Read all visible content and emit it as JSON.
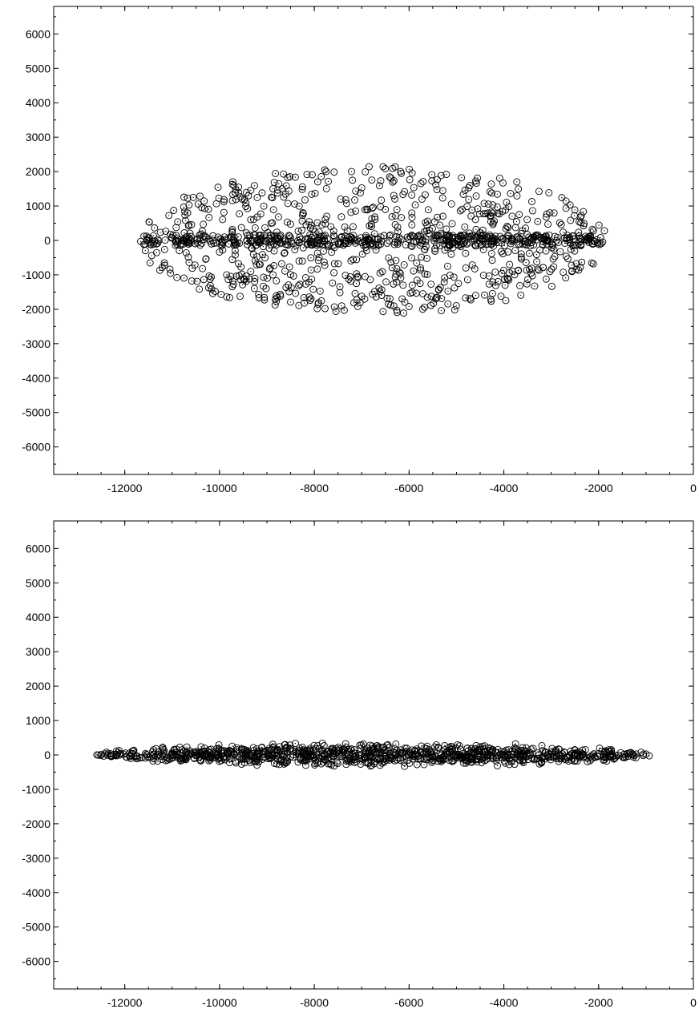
{
  "chart_data": [
    {
      "type": "scatter",
      "title": "",
      "xlabel": "",
      "ylabel": "",
      "xlim": [
        -13500,
        0
      ],
      "ylim": [
        -6800,
        6800
      ],
      "grid": false,
      "legend": "none",
      "marker": "open-circle-with-dot",
      "x_ticks": [
        {
          "value": -12000,
          "label": "-12000"
        },
        {
          "value": -10000,
          "label": "-10000"
        },
        {
          "value": -8000,
          "label": "-8000"
        },
        {
          "value": -6000,
          "label": "-6000"
        },
        {
          "value": -4000,
          "label": "-4000"
        },
        {
          "value": -2000,
          "label": "-2000"
        },
        {
          "value": 0,
          "label": "0"
        }
      ],
      "y_ticks": [
        {
          "value": 6000,
          "label": "6000"
        },
        {
          "value": 5000,
          "label": "5000"
        },
        {
          "value": 4000,
          "label": "4000"
        },
        {
          "value": 3000,
          "label": "3000"
        },
        {
          "value": 2000,
          "label": "2000"
        },
        {
          "value": 1000,
          "label": "1000"
        },
        {
          "value": 0,
          "label": "0"
        },
        {
          "value": -1000,
          "label": "-1000"
        },
        {
          "value": -2000,
          "label": "-2000"
        },
        {
          "value": -3000,
          "label": "-3000"
        },
        {
          "value": -4000,
          "label": "-4000"
        },
        {
          "value": -5000,
          "label": "-5000"
        },
        {
          "value": -6000,
          "label": "-6000"
        }
      ],
      "distribution": {
        "shape": "filled-ellipse",
        "center": [
          -6750,
          0
        ],
        "semi_axis_x": 4950,
        "semi_axis_y": 2150,
        "count": 1200
      }
    },
    {
      "type": "scatter",
      "title": "",
      "xlabel": "",
      "ylabel": "",
      "xlim": [
        -13500,
        0
      ],
      "ylim": [
        -6800,
        6800
      ],
      "grid": false,
      "legend": "none",
      "marker": "open-circle-with-dot",
      "x_ticks": [
        {
          "value": -12000,
          "label": "-12000"
        },
        {
          "value": -10000,
          "label": "-10000"
        },
        {
          "value": -8000,
          "label": "-8000"
        },
        {
          "value": -6000,
          "label": "-6000"
        },
        {
          "value": -4000,
          "label": "-4000"
        },
        {
          "value": -2000,
          "label": "-2000"
        },
        {
          "value": 0,
          "label": "0"
        }
      ],
      "y_ticks": [
        {
          "value": 6000,
          "label": "6000"
        },
        {
          "value": 5000,
          "label": "5000"
        },
        {
          "value": 4000,
          "label": "4000"
        },
        {
          "value": 3000,
          "label": "3000"
        },
        {
          "value": 2000,
          "label": "2000"
        },
        {
          "value": 1000,
          "label": "1000"
        },
        {
          "value": 0,
          "label": "0"
        },
        {
          "value": -1000,
          "label": "-1000"
        },
        {
          "value": -2000,
          "label": "-2000"
        },
        {
          "value": -3000,
          "label": "-3000"
        },
        {
          "value": -4000,
          "label": "-4000"
        },
        {
          "value": -5000,
          "label": "-5000"
        },
        {
          "value": -6000,
          "label": "-6000"
        }
      ],
      "distribution": {
        "shape": "flattened-ellipse",
        "center": [
          -6750,
          0
        ],
        "semi_axis_x": 5850,
        "semi_axis_y": 380,
        "count": 1000
      }
    }
  ]
}
